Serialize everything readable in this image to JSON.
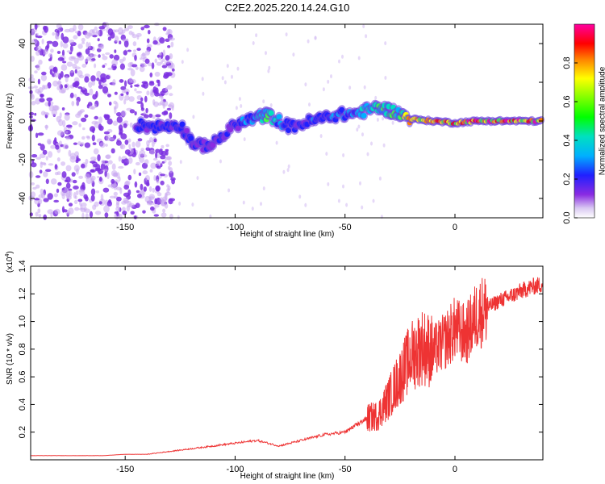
{
  "title": "C2E2.2025.220.14.24.G10",
  "chart_data": [
    {
      "type": "heatmap",
      "xlabel": "Height of straight line (km)",
      "ylabel": "Frequency (Hz)",
      "xlim": [
        -193,
        40
      ],
      "ylim": [
        -50,
        50
      ],
      "xticks": [
        -150,
        -100,
        -50,
        0
      ],
      "yticks": [
        -40,
        -20,
        0,
        20,
        40
      ],
      "colorbar": {
        "label": "Normalized spectral amplitude",
        "range": [
          0.0,
          1.0
        ],
        "ticks": [
          0.0,
          0.2,
          0.4,
          0.6,
          0.8
        ],
        "tick_labels": [
          "0.0",
          "0.2",
          "0.4",
          "0.6",
          "0.8"
        ]
      },
      "ridge": [
        {
          "x": -145,
          "y": -2,
          "amp": 0.3
        },
        {
          "x": -135,
          "y": -3,
          "amp": 0.35
        },
        {
          "x": -125,
          "y": -2,
          "amp": 0.3
        },
        {
          "x": -118,
          "y": -13,
          "amp": 0.25
        },
        {
          "x": -110,
          "y": -12,
          "amp": 0.28
        },
        {
          "x": -100,
          "y": -2,
          "amp": 0.3
        },
        {
          "x": -90,
          "y": 2,
          "amp": 0.45
        },
        {
          "x": -85,
          "y": 3,
          "amp": 0.6
        },
        {
          "x": -75,
          "y": -3,
          "amp": 0.3
        },
        {
          "x": -65,
          "y": 0,
          "amp": 0.35
        },
        {
          "x": -55,
          "y": 3,
          "amp": 0.4
        },
        {
          "x": -45,
          "y": 4,
          "amp": 0.45
        },
        {
          "x": -35,
          "y": 7,
          "amp": 0.6
        },
        {
          "x": -28,
          "y": 5,
          "amp": 0.55
        },
        {
          "x": -20,
          "y": 1,
          "amp": 0.9
        },
        {
          "x": -10,
          "y": 0,
          "amp": 0.95
        },
        {
          "x": 0,
          "y": -1,
          "amp": 0.9
        },
        {
          "x": 10,
          "y": 0,
          "amp": 0.95
        },
        {
          "x": 20,
          "y": 0,
          "amp": 0.95
        },
        {
          "x": 30,
          "y": 0,
          "amp": 0.95
        },
        {
          "x": 40,
          "y": 0,
          "amp": 0.95
        }
      ]
    },
    {
      "type": "line",
      "xlabel": "Height of straight line (km)",
      "ylabel": "SNR (10 * v/v)",
      "y_multiplier_label": "(x10",
      "y_multiplier_exp": "4",
      "y_multiplier_close": ")",
      "xlim": [
        -193,
        40
      ],
      "ylim": [
        0,
        1.4
      ],
      "xticks": [
        -150,
        -100,
        -50,
        0
      ],
      "yticks": [
        0.2,
        0.4,
        0.6,
        0.8,
        1.0,
        1.2,
        1.4
      ],
      "ytick_labels": [
        "0.2",
        "0.4",
        "0.6",
        "0.8",
        "1.0",
        "1.2",
        "1.4"
      ],
      "series": [
        {
          "color": "#ee3333",
          "x": [
            -193,
            -180,
            -170,
            -160,
            -150,
            -140,
            -130,
            -120,
            -110,
            -100,
            -90,
            -80,
            -70,
            -60,
            -50,
            -45,
            -40,
            -35,
            -30,
            -25,
            -20,
            -15,
            -10,
            -5,
            0,
            5,
            10,
            15,
            20,
            25,
            30,
            35,
            40
          ],
          "y": [
            0.03,
            0.03,
            0.03,
            0.03,
            0.04,
            0.04,
            0.06,
            0.08,
            0.1,
            0.12,
            0.14,
            0.1,
            0.14,
            0.18,
            0.2,
            0.25,
            0.3,
            0.32,
            0.45,
            0.6,
            0.75,
            0.82,
            0.78,
            0.85,
            0.95,
            0.9,
            1.05,
            1.1,
            1.15,
            1.18,
            1.22,
            1.25,
            1.27
          ]
        }
      ]
    }
  ]
}
